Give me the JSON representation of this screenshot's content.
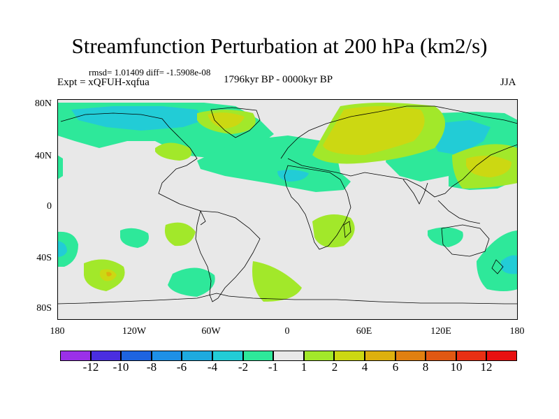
{
  "header": {
    "title": "Streamfunction Perturbation at 200 hPa (km2/s)",
    "stats": "rmsd= 1.01409 diff= -1.5908e-08",
    "experiment": "Expt = xQFUH-xqfua",
    "period": "1796kyr BP - 0000kyr BP",
    "season": "JJA"
  },
  "map": {
    "lat_labels": [
      "80N",
      "40N",
      "0",
      "40S",
      "80S"
    ],
    "lon_labels": [
      "180",
      "120W",
      "60W",
      "0",
      "60E",
      "120E",
      "180"
    ],
    "background": "#e8e8e8"
  },
  "colorbar": {
    "labels": [
      "-12",
      "-10",
      "-8",
      "-6",
      "-4",
      "-2",
      "-1",
      "1",
      "2",
      "4",
      "6",
      "8",
      "10",
      "12"
    ],
    "colors": [
      "#9b30e8",
      "#4a2ee0",
      "#1e64e0",
      "#1e90e6",
      "#1eaadf",
      "#22ccd6",
      "#2ee89a",
      "#e8e8e8",
      "#a2e82a",
      "#ccd812",
      "#ddb00e",
      "#e08010",
      "#e05812",
      "#e83014",
      "#e81010"
    ]
  }
}
